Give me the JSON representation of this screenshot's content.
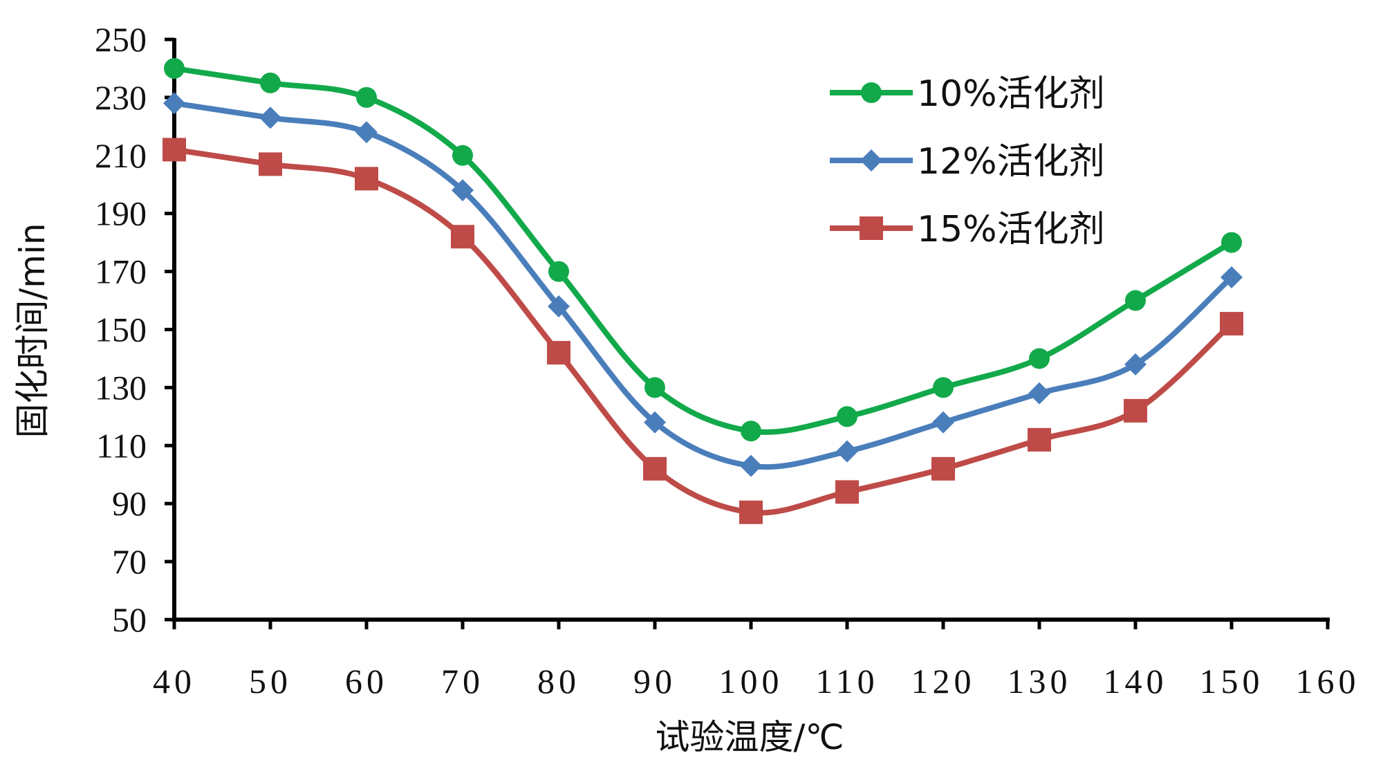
{
  "chart_data": {
    "type": "line",
    "title": "",
    "xlabel": "试验温度/℃",
    "ylabel": "固化时间/min",
    "xlim": [
      40,
      160
    ],
    "ylim": [
      50,
      250
    ],
    "xticks": [
      40,
      50,
      60,
      70,
      80,
      90,
      100,
      110,
      120,
      130,
      140,
      150,
      160
    ],
    "yticks": [
      50,
      70,
      90,
      110,
      130,
      150,
      170,
      190,
      210,
      230,
      250
    ],
    "x": [
      40,
      50,
      60,
      70,
      80,
      90,
      100,
      110,
      120,
      130,
      140,
      150
    ],
    "legend_position": "top-right",
    "grid": false,
    "series": [
      {
        "name": "10%活化剂",
        "marker": "circle",
        "color": "#12a94a",
        "values": [
          240,
          235,
          230,
          210,
          170,
          130,
          115,
          120,
          130,
          140,
          160,
          180
        ]
      },
      {
        "name": "12%活化剂",
        "marker": "diamond",
        "color": "#4a7ebb",
        "values": [
          228,
          223,
          218,
          198,
          158,
          118,
          103,
          108,
          118,
          128,
          138,
          168
        ]
      },
      {
        "name": "15%活化剂",
        "marker": "square",
        "color": "#be4b48",
        "values": [
          212,
          207,
          202,
          182,
          142,
          102,
          87,
          94,
          102,
          112,
          122,
          152
        ]
      }
    ]
  }
}
